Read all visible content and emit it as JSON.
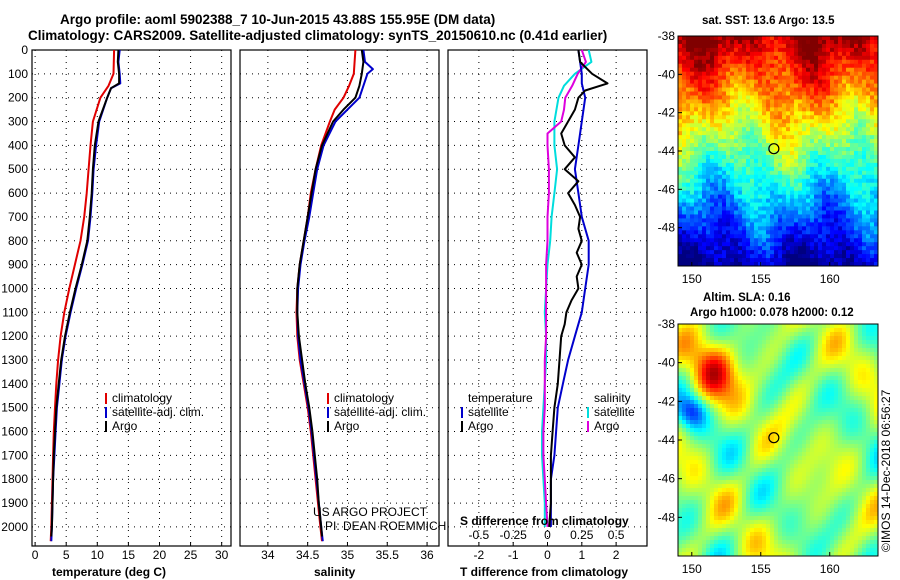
{
  "header": {
    "line1": "Argo profile: aoml 5902388_7 10-Jun-2015 43.88S 155.95E (DM data)",
    "line2": "Climatology: CARS2009. Satellite-adjusted climatology: synTS_20150610.nc (0.41d earlier)"
  },
  "colors": {
    "climatology": "#e00000",
    "satellite": "#0000cc",
    "argo": "#000000",
    "sat_cyan": "#00dddd",
    "argo_magenta": "#dd00dd"
  },
  "chart_data": [
    {
      "type": "line",
      "id": "temperature",
      "xlabel": "temperature (deg C)",
      "ylabel": "",
      "xlim": [
        -0.5,
        31.5
      ],
      "ylim": [
        2080,
        0
      ],
      "x_ticks": [
        "0",
        "5",
        "10",
        "15",
        "20",
        "25",
        "30"
      ],
      "y_ticks": [
        "0",
        "100",
        "200",
        "300",
        "400",
        "500",
        "600",
        "700",
        "800",
        "900",
        "1000",
        "1100",
        "1200",
        "1300",
        "1400",
        "1500",
        "1600",
        "1700",
        "1800",
        "1900",
        "2000"
      ],
      "legend": [
        "climatology",
        "satellite-adj. clim.",
        "Argo"
      ],
      "series": [
        {
          "name": "climatology",
          "depth": [
            0,
            100,
            150,
            200,
            300,
            400,
            500,
            600,
            700,
            800,
            900,
            1000,
            1100,
            1200,
            1300,
            1400,
            1500,
            1600,
            1700,
            1800,
            1900,
            2000,
            2060
          ],
          "values": [
            12.7,
            12.6,
            11.8,
            10.5,
            9.3,
            8.9,
            8.6,
            8.3,
            7.9,
            7.3,
            6.4,
            5.5,
            4.7,
            4.1,
            3.7,
            3.4,
            3.2,
            3.0,
            2.9,
            2.8,
            2.7,
            2.6,
            2.5
          ]
        },
        {
          "name": "satellite-adj. clim.",
          "depth": [
            0,
            50,
            100,
            140,
            160,
            200,
            300,
            400,
            500,
            600,
            700,
            800,
            900,
            1000,
            1100,
            1200,
            1300,
            1400,
            1500,
            1600,
            1700,
            1800,
            1900,
            2000,
            2060
          ],
          "values": [
            13.6,
            13.4,
            13.6,
            13.7,
            12.2,
            11.6,
            10.3,
            9.8,
            9.4,
            9.2,
            8.9,
            8.5,
            7.6,
            6.6,
            5.7,
            4.9,
            4.3,
            3.9,
            3.5,
            3.3,
            3.1,
            2.9,
            2.8,
            2.7,
            2.6
          ]
        },
        {
          "name": "Argo",
          "depth": [
            0,
            50,
            100,
            140,
            160,
            200,
            300,
            400,
            500,
            600,
            700,
            800,
            900,
            1000,
            1100,
            1200,
            1300,
            1400,
            1500,
            1600,
            1700,
            1800,
            1900,
            2000,
            2040
          ],
          "values": [
            13.4,
            13.3,
            13.5,
            13.5,
            12.2,
            11.6,
            10.2,
            9.6,
            9.3,
            9.1,
            8.8,
            8.4,
            7.5,
            6.5,
            5.6,
            4.8,
            4.2,
            3.8,
            3.4,
            3.2,
            3.0,
            2.9,
            2.8,
            2.7,
            2.6
          ]
        }
      ]
    },
    {
      "type": "line",
      "id": "salinity",
      "xlabel": "salinity",
      "ylabel": "",
      "xlim": [
        33.65,
        36.15
      ],
      "ylim": [
        2080,
        0
      ],
      "x_ticks": [
        "34",
        "34.5",
        "35",
        "35.5",
        "36"
      ],
      "legend": [
        "climatology",
        "satellite-adj. clim.",
        "Argo"
      ],
      "annotations": [
        "US ARGO PROJECT",
        "PI: DEAN ROEMMICH"
      ],
      "series": [
        {
          "name": "climatology",
          "depth": [
            0,
            100,
            150,
            200,
            250,
            300,
            400,
            500,
            600,
            700,
            800,
            900,
            1000,
            1100,
            1200,
            1300,
            1400,
            1500,
            1600,
            1700,
            1800,
            1900,
            2000,
            2060
          ],
          "values": [
            35.1,
            35.08,
            35.02,
            34.95,
            34.84,
            34.78,
            34.67,
            34.6,
            34.54,
            34.5,
            34.45,
            34.4,
            34.37,
            34.36,
            34.37,
            34.4,
            34.45,
            34.5,
            34.54,
            34.57,
            34.6,
            34.63,
            34.66,
            34.68
          ]
        },
        {
          "name": "satellite-adj. clim.",
          "depth": [
            0,
            50,
            80,
            100,
            150,
            200,
            250,
            300,
            400,
            500,
            600,
            700,
            800,
            900,
            1000,
            1100,
            1200,
            1300,
            1400,
            1500,
            1600,
            1700,
            1800,
            1900,
            2000,
            2060
          ],
          "values": [
            35.2,
            35.22,
            35.32,
            35.25,
            35.2,
            35.15,
            35.0,
            34.85,
            34.7,
            34.62,
            34.57,
            34.52,
            34.46,
            34.41,
            34.38,
            34.37,
            34.38,
            34.41,
            34.46,
            34.51,
            34.55,
            34.58,
            34.61,
            34.64,
            34.67,
            34.69
          ]
        },
        {
          "name": "Argo",
          "depth": [
            0,
            50,
            100,
            150,
            200,
            250,
            300,
            400,
            500,
            600,
            700,
            800,
            900,
            1000,
            1100,
            1200,
            1300,
            1400,
            1500,
            1600,
            1700,
            1800,
            1900,
            2000,
            2040
          ],
          "values": [
            35.18,
            35.2,
            35.18,
            35.15,
            35.1,
            34.95,
            34.82,
            34.68,
            34.6,
            34.55,
            34.5,
            34.45,
            34.4,
            34.37,
            34.37,
            34.39,
            34.43,
            34.47,
            34.52,
            34.56,
            34.59,
            34.62,
            34.64,
            34.67,
            34.68
          ]
        }
      ]
    },
    {
      "type": "line",
      "id": "difference",
      "xlabel": "T difference from climatology",
      "x2label": "S difference from climatology",
      "ylabel": "",
      "xlim": [
        -2.9,
        2.9
      ],
      "ylim": [
        2080,
        0
      ],
      "x_ticks": [
        "-2",
        "-1",
        "0",
        "1",
        "2"
      ],
      "x2_ticks": [
        "-0.5",
        "-0.25",
        "0",
        "0.25",
        "0.5"
      ],
      "legend_left_title": "temperature",
      "legend_right_title": "salinity",
      "legend_left": [
        "satellite",
        "Argo"
      ],
      "legend_right": [
        "satellite",
        "Argo"
      ],
      "series": [
        {
          "name": "temperature satellite",
          "depth": [
            0,
            100,
            140,
            200,
            300,
            400,
            500,
            600,
            700,
            800,
            900,
            1000,
            1100,
            1200,
            1300,
            1400,
            1500,
            1600,
            1700,
            1800,
            1900,
            2000
          ],
          "values": [
            0.9,
            1.0,
            1.0,
            1.1,
            1.0,
            0.9,
            0.8,
            0.9,
            1.0,
            1.2,
            1.2,
            1.1,
            1.0,
            0.8,
            0.6,
            0.45,
            0.3,
            0.25,
            0.2,
            0.1,
            0.1,
            0.1
          ]
        },
        {
          "name": "temperature Argo",
          "depth": [
            0,
            50,
            100,
            140,
            170,
            200,
            250,
            300,
            350,
            400,
            450,
            500,
            550,
            600,
            650,
            700,
            750,
            800,
            850,
            900,
            950,
            1000,
            1050,
            1100,
            1150,
            1200,
            1300,
            1400,
            1500,
            1600,
            1700,
            1800,
            1900,
            2000
          ],
          "values": [
            0.9,
            0.95,
            1.3,
            1.75,
            1.1,
            0.9,
            0.8,
            0.6,
            0.4,
            0.5,
            0.8,
            0.5,
            0.9,
            0.6,
            0.8,
            0.95,
            0.9,
            1.0,
            0.85,
            1.0,
            0.85,
            0.9,
            0.7,
            0.55,
            0.5,
            0.4,
            0.35,
            0.3,
            0.2,
            0.15,
            0.1,
            0.1,
            0.1,
            0.05
          ]
        },
        {
          "name": "salinity satellite",
          "depth": [
            0,
            50,
            100,
            150,
            200,
            300,
            400,
            500,
            600,
            700,
            800,
            900,
            1000,
            1100,
            1200,
            1300,
            1400,
            1500,
            1600,
            1700,
            1800,
            1900,
            2000
          ],
          "values": [
            0.3,
            0.32,
            0.2,
            0.12,
            0.08,
            0.05,
            0.05,
            0.07,
            0.05,
            0.03,
            0.02,
            0.0,
            -0.01,
            -0.02,
            -0.01,
            -0.01,
            -0.02,
            -0.03,
            -0.04,
            -0.04,
            -0.03,
            -0.02,
            -0.02
          ]
        },
        {
          "name": "salinity Argo",
          "depth": [
            0,
            50,
            100,
            150,
            200,
            250,
            300,
            350,
            400,
            500,
            600,
            700,
            800,
            900,
            1000,
            1100,
            1200,
            1300,
            1400,
            1500,
            1600,
            1700,
            1800,
            1900,
            2000
          ],
          "values": [
            0.25,
            0.28,
            0.22,
            0.18,
            0.13,
            0.12,
            0.1,
            0.0,
            0.0,
            0.01,
            0.01,
            0.0,
            0.0,
            -0.01,
            -0.01,
            -0.01,
            -0.01,
            -0.02,
            -0.02,
            -0.02,
            -0.03,
            -0.03,
            -0.02,
            -0.01,
            0.0
          ]
        }
      ]
    },
    {
      "type": "heatmap",
      "id": "sst_map",
      "title": "sat. SST: 13.6 Argo: 13.5",
      "x_ticks": [
        "150",
        "155",
        "160"
      ],
      "y_ticks": [
        "-38",
        "-40",
        "-42",
        "-44",
        "-46",
        "-48"
      ],
      "xlim": [
        149,
        163.5
      ],
      "ylim": [
        -50,
        -38
      ],
      "marker": {
        "lon": 155.95,
        "lat": -43.88
      }
    },
    {
      "type": "heatmap",
      "id": "sla_map",
      "title": "Altim. SLA: 0.16",
      "subtitle": "Argo h1000: 0.078 h2000: 0.12",
      "x_ticks": [
        "150",
        "155",
        "160"
      ],
      "y_ticks": [
        "-38",
        "-40",
        "-42",
        "-44",
        "-46",
        "-48"
      ],
      "xlim": [
        149,
        163.5
      ],
      "ylim": [
        -50,
        -38
      ],
      "marker": {
        "lon": 155.95,
        "lat": -43.88
      }
    }
  ],
  "footer": {
    "credit": "©IMOS 14-Dec-2018 06:56:27"
  }
}
